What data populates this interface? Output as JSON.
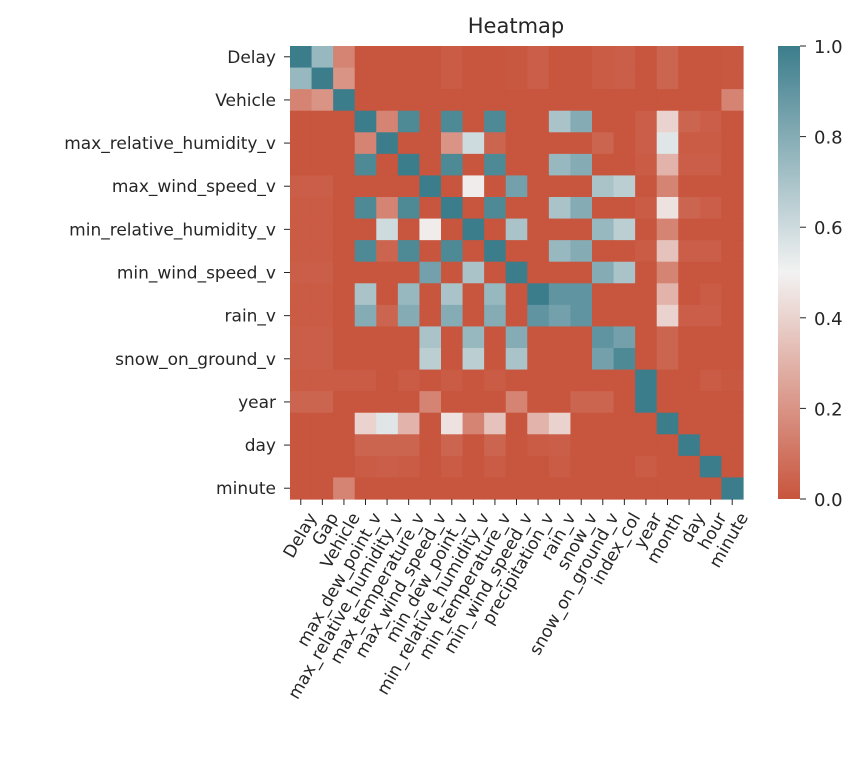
{
  "chart_data": {
    "type": "heatmap",
    "title": "Heatmap",
    "xlabel": "",
    "ylabel": "",
    "variables": [
      "Delay",
      "Gap",
      "Vehicle",
      "max_dew_point_v",
      "max_relative_humidity_v",
      "max_temperature_v",
      "max_wind_speed_v",
      "min_dew_point_v",
      "min_relative_humidity_v",
      "min_temperature_v",
      "min_wind_speed_v",
      "precipitation_v",
      "rain_v",
      "snow_v",
      "snow_on_ground_v",
      "index_col",
      "year",
      "month",
      "day",
      "hour",
      "minute"
    ],
    "x_tick_labels": [
      "Delay",
      "Gap",
      "Vehicle",
      "max_dew_point_v",
      "max_relative_humidity_v",
      "max_temperature_v",
      "max_wind_speed_v",
      "min_dew_point_v",
      "min_relative_humidity_v",
      "min_temperature_v",
      "min_wind_speed_v",
      "precipitation_v",
      "rain_v",
      "snow_v",
      "snow_on_ground_v",
      "index_col",
      "year",
      "month",
      "day",
      "hour",
      "minute"
    ],
    "y_tick_labels": [
      "Delay",
      "Vehicle",
      "max_relative_humidity_v",
      "max_wind_speed_v",
      "min_relative_humidity_v",
      "min_wind_speed_v",
      "rain_v",
      "snow_on_ground_v",
      "year",
      "day",
      "minute"
    ],
    "values": [
      [
        1.0,
        0.75,
        0.15,
        0.0,
        0.0,
        0.0,
        0.0,
        0.02,
        0.0,
        0.0,
        0.01,
        0.03,
        0.0,
        0.0,
        0.02,
        0.03,
        0.0,
        0.05,
        0.0,
        0.0,
        0.01
      ],
      [
        0.75,
        1.0,
        0.2,
        0.0,
        0.0,
        0.0,
        0.0,
        0.02,
        0.0,
        0.0,
        0.01,
        0.03,
        0.0,
        0.0,
        0.02,
        0.03,
        0.0,
        0.05,
        0.0,
        0.0,
        0.01
      ],
      [
        0.15,
        0.2,
        1.0,
        0.0,
        0.0,
        0.0,
        0.0,
        0.0,
        0.0,
        0.0,
        0.0,
        0.0,
        0.0,
        0.0,
        0.0,
        0.0,
        0.0,
        0.0,
        0.0,
        0.0,
        0.15
      ],
      [
        0.0,
        0.0,
        0.0,
        1.0,
        0.15,
        0.95,
        0.0,
        0.95,
        0.0,
        0.95,
        0.0,
        0.0,
        0.7,
        0.8,
        0.0,
        0.0,
        0.03,
        0.4,
        0.05,
        0.03,
        0.0
      ],
      [
        0.0,
        0.0,
        0.0,
        0.15,
        1.0,
        0.0,
        0.0,
        0.2,
        0.6,
        0.05,
        0.0,
        0.0,
        0.0,
        0.0,
        0.05,
        0.0,
        0.03,
        0.55,
        0.02,
        0.02,
        0.0
      ],
      [
        0.0,
        0.0,
        0.0,
        0.95,
        0.0,
        1.0,
        0.0,
        0.95,
        0.0,
        0.95,
        0.0,
        0.0,
        0.75,
        0.8,
        0.0,
        0.0,
        0.02,
        0.3,
        0.03,
        0.03,
        0.0
      ],
      [
        0.03,
        0.03,
        0.0,
        0.0,
        0.0,
        0.0,
        1.0,
        0.0,
        0.48,
        0.0,
        0.85,
        0.0,
        0.0,
        0.0,
        0.7,
        0.65,
        0.0,
        0.15,
        0.0,
        0.0,
        0.0
      ],
      [
        0.02,
        0.02,
        0.0,
        0.95,
        0.15,
        0.95,
        0.0,
        1.0,
        0.0,
        0.95,
        0.0,
        0.0,
        0.7,
        0.8,
        0.0,
        0.0,
        0.02,
        0.45,
        0.05,
        0.03,
        0.0
      ],
      [
        0.02,
        0.02,
        0.0,
        0.0,
        0.6,
        0.0,
        0.48,
        0.0,
        1.0,
        0.0,
        0.7,
        0.0,
        0.0,
        0.0,
        0.75,
        0.65,
        0.0,
        0.15,
        0.0,
        0.0,
        0.0
      ],
      [
        0.02,
        0.02,
        0.0,
        0.95,
        0.05,
        0.95,
        0.0,
        0.95,
        0.0,
        1.0,
        0.0,
        0.0,
        0.75,
        0.8,
        0.0,
        0.0,
        0.02,
        0.35,
        0.03,
        0.03,
        0.0
      ],
      [
        0.03,
        0.03,
        0.0,
        0.0,
        0.0,
        0.0,
        0.85,
        0.0,
        0.7,
        0.0,
        1.0,
        0.0,
        0.0,
        0.0,
        0.8,
        0.7,
        0.0,
        0.15,
        0.0,
        0.0,
        0.0
      ],
      [
        0.02,
        0.02,
        0.0,
        0.7,
        0.0,
        0.75,
        0.0,
        0.7,
        0.0,
        0.75,
        0.0,
        1.0,
        0.9,
        0.9,
        0.0,
        0.0,
        0.0,
        0.3,
        0.0,
        0.02,
        0.0
      ],
      [
        0.02,
        0.02,
        0.0,
        0.8,
        0.05,
        0.8,
        0.0,
        0.8,
        0.0,
        0.8,
        0.0,
        0.9,
        0.85,
        0.9,
        0.0,
        0.0,
        0.0,
        0.4,
        0.03,
        0.03,
        0.0
      ],
      [
        0.03,
        0.03,
        0.0,
        0.0,
        0.0,
        0.0,
        0.7,
        0.0,
        0.75,
        0.0,
        0.8,
        0.0,
        0.0,
        0.0,
        0.9,
        0.85,
        0.0,
        0.05,
        0.0,
        0.0,
        0.0
      ],
      [
        0.03,
        0.03,
        0.0,
        0.0,
        0.0,
        0.0,
        0.65,
        0.0,
        0.65,
        0.0,
        0.7,
        0.0,
        0.0,
        0.0,
        0.85,
        0.95,
        0.0,
        0.05,
        0.0,
        0.0,
        0.0
      ],
      [
        0.02,
        0.02,
        0.02,
        0.02,
        0.0,
        0.02,
        0.0,
        0.02,
        0.0,
        0.02,
        0.0,
        0.0,
        0.0,
        0.0,
        0.0,
        0.0,
        1.0,
        0.0,
        0.0,
        0.02,
        0.01
      ],
      [
        0.05,
        0.05,
        0.0,
        0.0,
        0.0,
        0.0,
        0.15,
        0.0,
        0.0,
        0.0,
        0.15,
        0.0,
        0.0,
        0.05,
        0.05,
        0.0,
        1.0,
        0.0,
        0.0,
        0.0,
        0.0
      ],
      [
        0.0,
        0.0,
        0.0,
        0.4,
        0.55,
        0.3,
        0.0,
        0.45,
        0.15,
        0.35,
        0.0,
        0.3,
        0.4,
        0.0,
        0.0,
        0.0,
        0.0,
        1.0,
        0.0,
        0.0,
        0.0
      ],
      [
        0.0,
        0.0,
        0.0,
        0.05,
        0.05,
        0.05,
        0.0,
        0.05,
        0.0,
        0.05,
        0.0,
        0.02,
        0.03,
        0.0,
        0.0,
        0.0,
        0.0,
        0.0,
        1.0,
        0.0,
        0.0
      ],
      [
        0.0,
        0.0,
        0.0,
        0.02,
        0.03,
        0.02,
        0.0,
        0.02,
        0.0,
        0.02,
        0.0,
        0.0,
        0.02,
        0.0,
        0.0,
        0.0,
        0.02,
        0.0,
        0.0,
        1.0,
        0.0
      ],
      [
        0.0,
        0.0,
        0.15,
        0.0,
        0.0,
        0.0,
        0.0,
        0.0,
        0.0,
        0.0,
        0.0,
        0.0,
        0.0,
        0.0,
        0.0,
        0.0,
        0.0,
        0.0,
        0.0,
        0.0,
        1.0
      ]
    ],
    "colorbar": {
      "vmin": 0.0,
      "vmax": 1.0,
      "ticks": [
        "0.0",
        "0.2",
        "0.4",
        "0.6",
        "0.8",
        "1.0"
      ],
      "colors": {
        "low": "#c8553d",
        "mid": "#f2f2f2",
        "high": "#3c7d8c"
      }
    }
  }
}
